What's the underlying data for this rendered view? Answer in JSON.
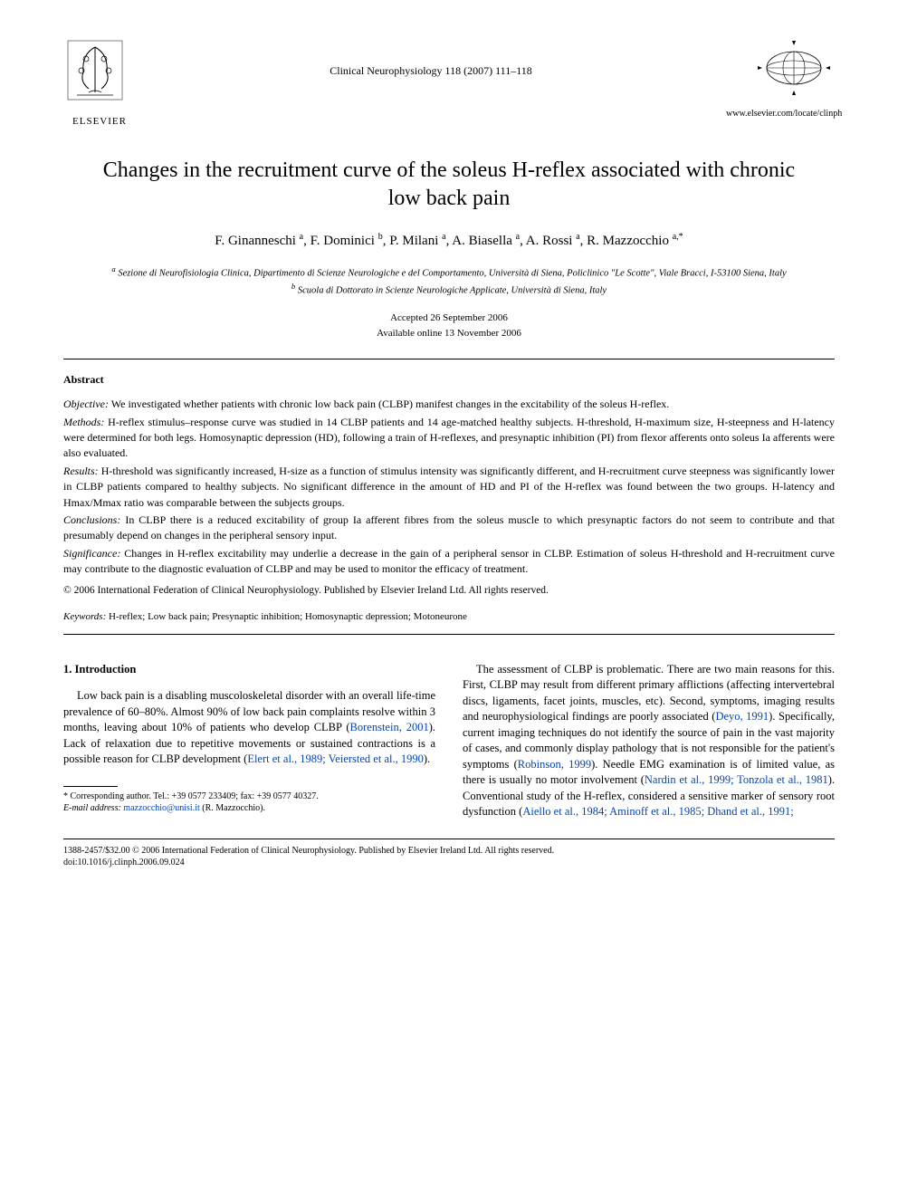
{
  "header": {
    "publisher_name": "ELSEVIER",
    "journal_ref": "Clinical Neurophysiology 118 (2007) 111–118",
    "journal_url": "www.elsevier.com/locate/clinph"
  },
  "title": "Changes in the recruitment curve of the soleus H-reflex associated with chronic low back pain",
  "authors_html": "F. Ginanneschi <sup>a</sup>, F. Dominici <sup>b</sup>, P. Milani <sup>a</sup>, A. Biasella <sup>a</sup>, A. Rossi <sup>a</sup>, R. Mazzocchio <sup>a,*</sup>",
  "affiliations": {
    "a": "Sezione di Neurofisiologia Clinica, Dipartimento di Scienze Neurologiche e del Comportamento, Università di Siena, Policlinico \"Le Scotte\", Viale Bracci, I-53100 Siena, Italy",
    "b": "Scuola di Dottorato in Scienze Neurologiche Applicate, Università di Siena, Italy"
  },
  "dates": {
    "accepted": "Accepted 26 September 2006",
    "online": "Available online 13 November 2006"
  },
  "abstract": {
    "heading": "Abstract",
    "objective_label": "Objective:",
    "objective": "We investigated whether patients with chronic low back pain (CLBP) manifest changes in the excitability of the soleus H-reflex.",
    "methods_label": "Methods:",
    "methods": "H-reflex stimulus–response curve was studied in 14 CLBP patients and 14 age-matched healthy subjects. H-threshold, H-maximum size, H-steepness and H-latency were determined for both legs. Homosynaptic depression (HD), following a train of H-reflexes, and presynaptic inhibition (PI) from flexor afferents onto soleus Ia afferents were also evaluated.",
    "results_label": "Results:",
    "results": "H-threshold was significantly increased, H-size as a function of stimulus intensity was significantly different, and H-recruitment curve steepness was significantly lower in CLBP patients compared to healthy subjects. No significant difference in the amount of HD and PI of the H-reflex was found between the two groups. H-latency and Hmax/Mmax ratio was comparable between the subjects groups.",
    "conclusions_label": "Conclusions:",
    "conclusions": "In CLBP there is a reduced excitability of group Ia afferent fibres from the soleus muscle to which presynaptic factors do not seem to contribute and that presumably depend on changes in the peripheral sensory input.",
    "significance_label": "Significance:",
    "significance": "Changes in H-reflex excitability may underlie a decrease in the gain of a peripheral sensor in CLBP. Estimation of soleus H-threshold and H-recruitment curve may contribute to the diagnostic evaluation of CLBP and may be used to monitor the efficacy of treatment.",
    "copyright": "© 2006 International Federation of Clinical Neurophysiology. Published by Elsevier Ireland Ltd. All rights reserved."
  },
  "keywords": {
    "label": "Keywords:",
    "text": "H-reflex; Low back pain; Presynaptic inhibition; Homosynaptic depression; Motoneurone"
  },
  "body": {
    "section_heading": "1. Introduction",
    "para1_pre": "Low back pain is a disabling muscoloskeletal disorder with an overall life-time prevalence of 60–80%. Almost 90% of low back pain complaints resolve within 3 months, leaving about 10% of patients who develop CLBP (",
    "para1_cite1": "Borenstein, 2001",
    "para1_mid1": "). Lack of relaxation due to repetitive movements or sustained contractions is a possible reason for CLBP development (",
    "para1_cite2": "Elert et al., 1989; Veiersted et al., 1990",
    "para1_end": ").",
    "para2_pre": "The assessment of CLBP is problematic. There are two main reasons for this. First, CLBP may result from different primary afflictions (affecting intervertebral discs, ligaments, facet joints, muscles, etc). Second, symptoms, imaging results and neurophysiological findings are poorly associated (",
    "para2_cite1": "Deyo, 1991",
    "para2_mid1": "). Specifically, current imaging techniques do not identify the source of pain in the vast majority of cases, and commonly display pathology that is not responsible for the patient's symptoms (",
    "para2_cite2": "Robinson, 1999",
    "para2_mid2": "). Needle EMG examination is of limited value, as there is usually no motor involvement (",
    "para2_cite3": "Nardin et al., 1999; Tonzola et al., 1981",
    "para2_mid3": "). Conventional study of the H-reflex, considered a sensitive marker of sensory root dysfunction (",
    "para2_cite4": "Aiello et al., 1984; Aminoff et al., 1985; Dhand et al., 1991;"
  },
  "footnote": {
    "corr": "* Corresponding author. Tel.: +39 0577 233409; fax: +39 0577 40327.",
    "email_label": "E-mail address:",
    "email": "mazzocchio@unisi.it",
    "email_suffix": "(R. Mazzocchio)."
  },
  "footer": {
    "line1": "1388-2457/$32.00 © 2006 International Federation of Clinical Neurophysiology. Published by Elsevier Ireland Ltd. All rights reserved.",
    "line2": "doi:10.1016/j.clinph.2006.09.024"
  },
  "colors": {
    "text": "#000000",
    "link": "#0645ad",
    "background": "#ffffff"
  }
}
